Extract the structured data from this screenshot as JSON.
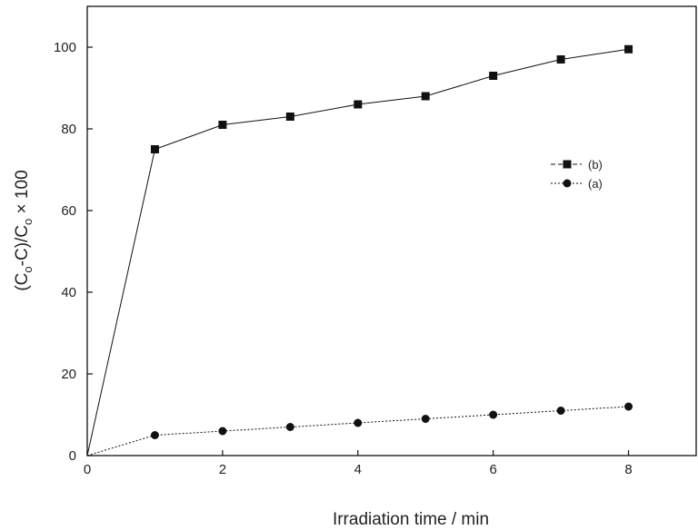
{
  "chart_data": {
    "type": "line",
    "xlabel": "Irradiation time / min",
    "ylabel_parts": [
      "(C",
      "o",
      "-C)/C",
      "o",
      " × 100"
    ],
    "xlim": [
      0,
      9
    ],
    "ylim": [
      0,
      110
    ],
    "xticks": [
      0,
      2,
      4,
      6,
      8
    ],
    "yticks": [
      0,
      20,
      40,
      60,
      80,
      100
    ],
    "legend_position": "right",
    "series": [
      {
        "name": "(b)",
        "marker": "square",
        "line": "solid",
        "color": "#111111",
        "x": [
          0,
          1,
          2,
          3,
          4,
          5,
          6,
          7,
          8
        ],
        "y": [
          0,
          75,
          81,
          83,
          86,
          88,
          93,
          97,
          99.5
        ]
      },
      {
        "name": "(a)",
        "marker": "circle",
        "line": "dotted",
        "color": "#111111",
        "x": [
          0,
          1,
          2,
          3,
          4,
          5,
          6,
          7,
          8
        ],
        "y": [
          0,
          5,
          6,
          7,
          8,
          9,
          10,
          11,
          12
        ]
      }
    ]
  }
}
